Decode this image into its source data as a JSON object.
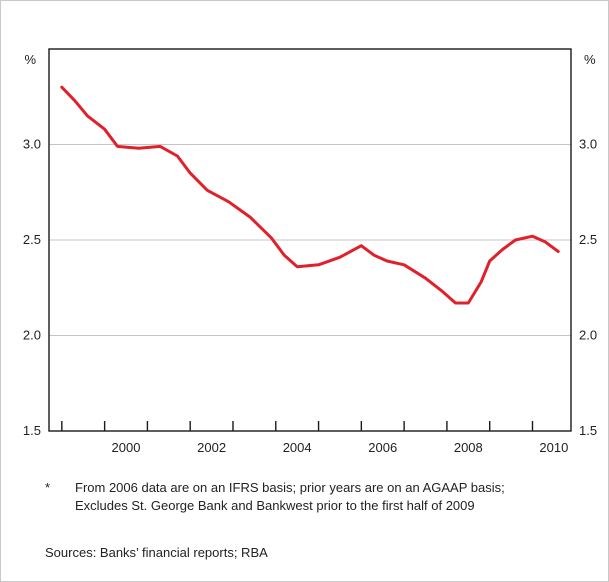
{
  "chart_data": {
    "type": "line",
    "title": "",
    "left_unit": "%",
    "right_unit": "%",
    "ylim": [
      1.5,
      3.5
    ],
    "y_ticks": [
      1.5,
      2.0,
      2.5,
      3.0
    ],
    "y_tick_labels": [
      "1.5",
      "2.0",
      "2.5",
      "3.0"
    ],
    "xlim": [
      1998.7,
      2010.9
    ],
    "x_ticks": [
      2000,
      2002,
      2004,
      2006,
      2008,
      2010
    ],
    "x_tick_labels": [
      "2000",
      "2002",
      "2004",
      "2006",
      "2008",
      "2010"
    ],
    "grid": true,
    "series": [
      {
        "color": "#e0202a",
        "x": [
          1999.0,
          1999.3,
          1999.6,
          2000.0,
          2000.3,
          2000.8,
          2001.3,
          2001.7,
          2002.0,
          2002.4,
          2002.9,
          2003.4,
          2003.9,
          2004.2,
          2004.5,
          2005.0,
          2005.5,
          2006.0,
          2006.3,
          2006.6,
          2007.0,
          2007.5,
          2007.9,
          2008.2,
          2008.5,
          2008.8,
          2009.0,
          2009.3,
          2009.6,
          2010.0,
          2010.3,
          2010.6
        ],
        "values": [
          3.3,
          3.23,
          3.15,
          3.08,
          2.99,
          2.98,
          2.99,
          2.94,
          2.85,
          2.76,
          2.7,
          2.62,
          2.51,
          2.42,
          2.36,
          2.37,
          2.41,
          2.47,
          2.42,
          2.39,
          2.37,
          2.3,
          2.23,
          2.17,
          2.17,
          2.28,
          2.39,
          2.45,
          2.5,
          2.52,
          2.49,
          2.44
        ]
      }
    ]
  },
  "footnote": {
    "marker": "*",
    "lines": [
      "From 2006 data are on an IFRS basis; prior years are on an AGAAP basis;",
      "Excludes St. George Bank and Bankwest prior to the first half of 2009"
    ]
  },
  "sources": "Sources: Banks’ financial reports; RBA"
}
